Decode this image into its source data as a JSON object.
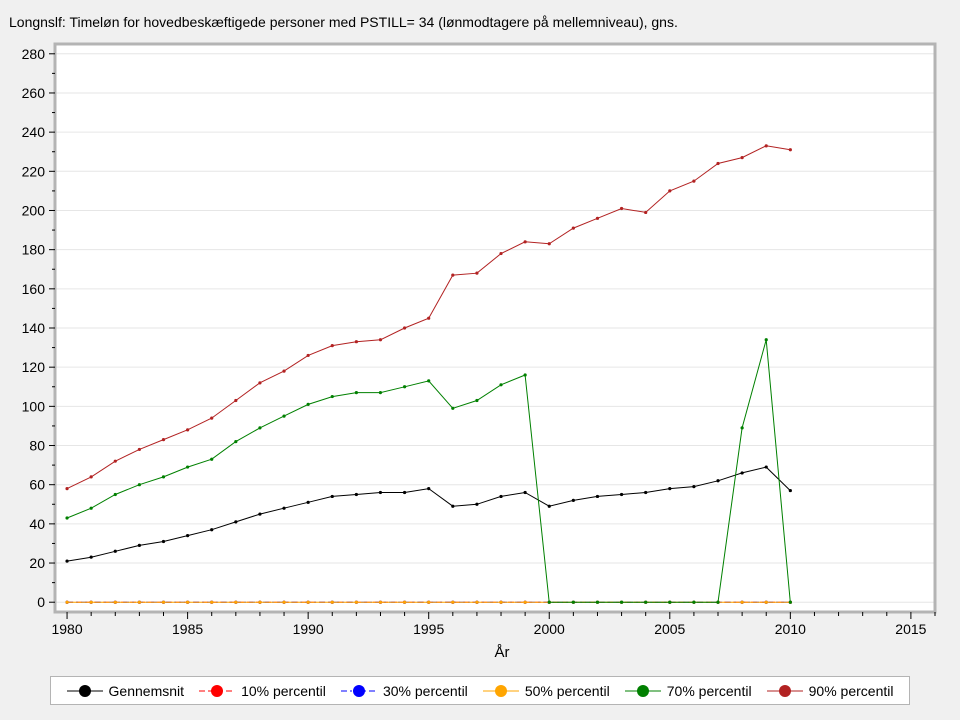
{
  "chart_data": {
    "type": "line",
    "title": "Longnslf: Timeløn for hovedbeskæftigede personer med PSTILL= 34 (lønmodtagere på mellemniveau), gns.",
    "xlabel": "År",
    "ylabel": "",
    "xlim": [
      1979.5,
      2016
    ],
    "ylim": [
      -5,
      285
    ],
    "xticks": [
      1980,
      1985,
      1990,
      1995,
      2000,
      2005,
      2010,
      2015
    ],
    "yticks": [
      0,
      20,
      40,
      60,
      80,
      100,
      120,
      140,
      160,
      180,
      200,
      220,
      240,
      260,
      280
    ],
    "grid": true,
    "legend_position": "bottom",
    "x": [
      1980,
      1981,
      1982,
      1983,
      1984,
      1985,
      1986,
      1987,
      1988,
      1989,
      1990,
      1991,
      1992,
      1993,
      1994,
      1995,
      1996,
      1997,
      1998,
      1999,
      2000,
      2001,
      2002,
      2003,
      2004,
      2005,
      2006,
      2007,
      2008,
      2009,
      2010
    ],
    "series": [
      {
        "name": "Gennemsnit",
        "color": "#000000",
        "dash": "solid",
        "values": [
          21,
          23,
          26,
          29,
          31,
          34,
          37,
          41,
          45,
          48,
          51,
          54,
          55,
          56,
          56,
          58,
          49,
          50,
          54,
          56,
          49,
          52,
          54,
          55,
          56,
          58,
          59,
          62,
          66,
          69,
          57
        ]
      },
      {
        "name": "10% percentil",
        "color": "#ff0000",
        "dash": "dash",
        "values": [
          0,
          0,
          0,
          0,
          0,
          0,
          0,
          0,
          0,
          0,
          0,
          0,
          0,
          0,
          0,
          0,
          0,
          0,
          0,
          0,
          0,
          0,
          0,
          0,
          0,
          0,
          0,
          0,
          0,
          0,
          0
        ]
      },
      {
        "name": "30% percentil",
        "color": "#0000ff",
        "dash": "dashdot",
        "values": [
          0,
          0,
          0,
          0,
          0,
          0,
          0,
          0,
          0,
          0,
          0,
          0,
          0,
          0,
          0,
          0,
          0,
          0,
          0,
          0,
          0,
          0,
          0,
          0,
          0,
          0,
          0,
          0,
          0,
          0,
          0
        ]
      },
      {
        "name": "50% percentil",
        "color": "#ffa500",
        "dash": "solid",
        "values": [
          0,
          0,
          0,
          0,
          0,
          0,
          0,
          0,
          0,
          0,
          0,
          0,
          0,
          0,
          0,
          0,
          0,
          0,
          0,
          0,
          0,
          0,
          0,
          0,
          0,
          0,
          0,
          0,
          0,
          0,
          0
        ]
      },
      {
        "name": "70% percentil",
        "color": "#008000",
        "dash": "solid",
        "values": [
          43,
          48,
          55,
          60,
          64,
          69,
          73,
          82,
          89,
          95,
          101,
          105,
          107,
          107,
          110,
          113,
          99,
          103,
          111,
          116,
          0,
          0,
          0,
          0,
          0,
          0,
          0,
          0,
          89,
          134,
          0
        ]
      },
      {
        "name": "90% percentil",
        "color": "#b22222",
        "dash": "solid",
        "values": [
          58,
          64,
          72,
          78,
          83,
          88,
          94,
          103,
          112,
          118,
          126,
          131,
          133,
          134,
          140,
          145,
          167,
          168,
          178,
          184,
          183,
          191,
          196,
          201,
          199,
          210,
          215,
          224,
          227,
          233,
          231
        ]
      }
    ]
  }
}
